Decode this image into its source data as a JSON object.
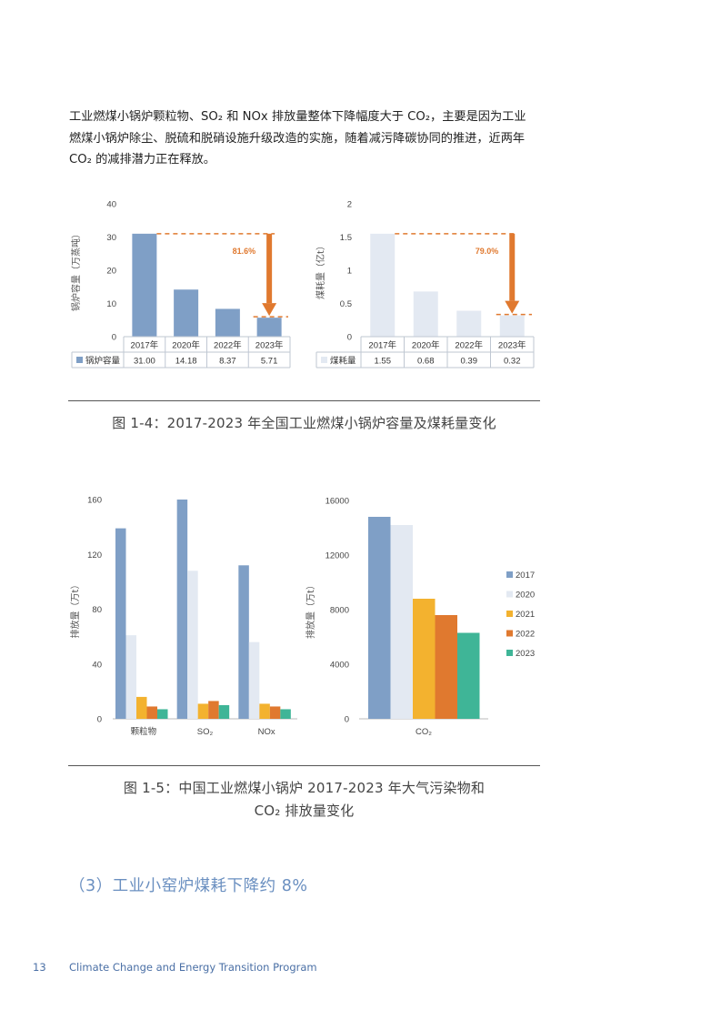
{
  "intro": {
    "line1": "工业燃煤小锅炉颗粒物、SO₂ 和 NOx 排放量整体下降幅度大于 CO₂，主要是因为工业",
    "line2": "燃煤小锅炉除尘、脱硫和脱硝设施升级改造的实施，随着减污降碳协同的推进，近两年",
    "line3": "CO₂ 的减排潜力正在释放。"
  },
  "figure_1_4": {
    "caption": "图 1-4：2017-2023 年全国工业燃煤小锅炉容量及煤耗量变化"
  },
  "figure_1_5": {
    "caption_line1": "图 1-5：中国工业燃煤小锅炉 2017-2023 年大气污染物和",
    "caption_line2": "CO₂ 排放量变化"
  },
  "section_heading": "（3）工业小窑炉煤耗下降约 8%",
  "footer": {
    "page_number": "13",
    "program": "Climate Change and Energy Transition Program"
  },
  "colors": {
    "blue": "#7f9fc6",
    "light": "#e3e9f2",
    "yellow": "#f3b22f",
    "orange": "#e0792f",
    "green": "#3fb597"
  },
  "chart_data": [
    {
      "type": "bar",
      "title": "",
      "ylabel": "锅炉容量（万蒸吨）",
      "ylim": [
        0,
        40
      ],
      "yticks": [
        "0",
        "10",
        "20",
        "30",
        "40"
      ],
      "categories": [
        "2017年",
        "2020年",
        "2022年",
        "2023年"
      ],
      "series": [
        {
          "name": "锅炉容量",
          "values": [
            31.0,
            14.18,
            8.37,
            5.71
          ]
        }
      ],
      "table_values": [
        "31.00",
        "14.18",
        "8.37",
        "5.71"
      ],
      "annotation": "81.6%",
      "color": "#7f9fc6"
    },
    {
      "type": "bar",
      "title": "",
      "ylabel": "煤耗量（亿t）",
      "ylim": [
        0,
        2
      ],
      "yticks": [
        "0",
        "0.5",
        "1",
        "1.5",
        "2"
      ],
      "categories": [
        "2017年",
        "2020年",
        "2022年",
        "2023年"
      ],
      "series": [
        {
          "name": "煤耗量",
          "values": [
            1.55,
            0.68,
            0.39,
            0.32
          ]
        }
      ],
      "table_values": [
        "1.55",
        "0.68",
        "0.39",
        "0.32"
      ],
      "annotation": "79.0%",
      "color": "#e3e9f2"
    },
    {
      "type": "bar",
      "title": "",
      "ylabel": "排放量（万t）",
      "ylim": [
        0,
        160
      ],
      "yticks": [
        "0",
        "40",
        "80",
        "120",
        "160"
      ],
      "categories": [
        "颗粒物",
        "SO₂",
        "NOx"
      ],
      "series": [
        {
          "name": "2017",
          "values": [
            139,
            160,
            112
          ]
        },
        {
          "name": "2020",
          "values": [
            61,
            108,
            56
          ]
        },
        {
          "name": "2021",
          "values": [
            16,
            11,
            11
          ]
        },
        {
          "name": "2022",
          "values": [
            9,
            13,
            9
          ]
        },
        {
          "name": "2023",
          "values": [
            7,
            10,
            7
          ]
        }
      ]
    },
    {
      "type": "bar",
      "title": "",
      "ylabel": "排放量（万t）",
      "ylim": [
        0,
        16000
      ],
      "yticks": [
        "0",
        "4000",
        "8000",
        "12000",
        "16000"
      ],
      "categories": [
        "CO₂"
      ],
      "series": [
        {
          "name": "2017",
          "values": [
            14800
          ]
        },
        {
          "name": "2020",
          "values": [
            14200
          ]
        },
        {
          "name": "2021",
          "values": [
            8800
          ]
        },
        {
          "name": "2022",
          "values": [
            7600
          ]
        },
        {
          "name": "2023",
          "values": [
            6300
          ]
        }
      ],
      "legend": "right"
    }
  ]
}
